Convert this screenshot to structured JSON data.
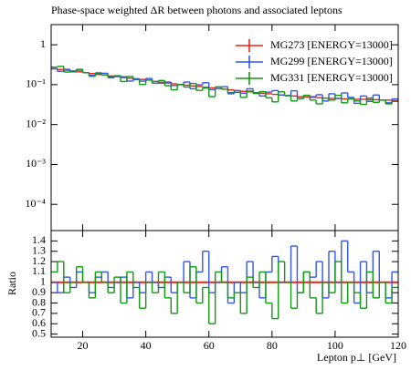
{
  "chart_data": [
    {
      "type": "histogram",
      "title": "Phase-space weighted ΔR between photons and associated leptons",
      "bins": [
        10,
        12,
        14,
        16,
        18,
        20,
        22,
        24,
        26,
        28,
        30,
        32,
        34,
        36,
        38,
        40,
        42,
        44,
        46,
        48,
        50,
        52,
        54,
        56,
        58,
        60,
        62,
        64,
        66,
        68,
        70,
        72,
        74,
        76,
        78,
        80,
        82,
        84,
        86,
        88,
        90,
        92,
        94,
        96,
        98,
        100,
        102,
        104,
        106,
        108,
        110,
        112,
        114,
        116,
        118,
        120
      ],
      "xlim": [
        10,
        120
      ],
      "log_scale": true,
      "ylim": [
        2.2e-05,
        3.2
      ],
      "yticks": [
        1,
        {
          "value": 0.1,
          "label": "10⁻¹"
        },
        {
          "value": 0.01,
          "label": "10⁻²"
        },
        {
          "value": 0.001,
          "label": "10⁻³"
        },
        {
          "value": 0.0001,
          "label": "10⁻⁴"
        }
      ],
      "legend": "top-right",
      "series": [
        {
          "name": "MG273 [ENERGY=13000]",
          "color": "#ee2211",
          "values": [
            0.25,
            0.24,
            0.23,
            0.22,
            0.21,
            0.2,
            0.19,
            0.18,
            0.175,
            0.165,
            0.16,
            0.15,
            0.145,
            0.14,
            0.135,
            0.13,
            0.12,
            0.115,
            0.11,
            0.105,
            0.1,
            0.097,
            0.093,
            0.09,
            0.086,
            0.083,
            0.08,
            0.077,
            0.074,
            0.071,
            0.068,
            0.066,
            0.063,
            0.061,
            0.059,
            0.057,
            0.055,
            0.053,
            0.052,
            0.05,
            0.049,
            0.048,
            0.047,
            0.046,
            0.045,
            0.045,
            0.044,
            0.044,
            0.043,
            0.043,
            0.042,
            0.042,
            0.041,
            0.041,
            0.04
          ]
        },
        {
          "name": "MG299 [ENERGY=13000]",
          "color": "#3355ee",
          "values": [
            0.25,
            0.216,
            0.242,
            0.209,
            0.231,
            0.2,
            0.171,
            0.189,
            0.193,
            0.157,
            0.16,
            0.158,
            0.123,
            0.14,
            0.122,
            0.143,
            0.12,
            0.109,
            0.116,
            0.095,
            0.1,
            0.116,
            0.079,
            0.099,
            0.112,
            0.075,
            0.08,
            0.089,
            0.059,
            0.071,
            0.061,
            0.079,
            0.063,
            0.052,
            0.065,
            0.071,
            0.055,
            0.053,
            0.07,
            0.045,
            0.054,
            0.05,
            0.056,
            0.039,
            0.059,
            0.045,
            0.062,
            0.048,
            0.034,
            0.052,
            0.038,
            0.055,
            0.041,
            0.035,
            0.044
          ]
        },
        {
          "name": "MG331 [ENERGY=13000]",
          "color": "#119911",
          "values": [
            0.275,
            0.288,
            0.207,
            0.22,
            0.242,
            0.2,
            0.162,
            0.198,
            0.175,
            0.149,
            0.168,
            0.12,
            0.16,
            0.133,
            0.101,
            0.13,
            0.108,
            0.127,
            0.094,
            0.074,
            0.1,
            0.087,
            0.107,
            0.072,
            0.082,
            0.05,
            0.088,
            0.077,
            0.063,
            0.064,
            0.048,
            0.069,
            0.06,
            0.067,
            0.047,
            0.037,
            0.066,
            0.053,
            0.039,
            0.045,
            0.054,
            0.041,
            0.033,
            0.046,
            0.041,
            0.054,
            0.035,
            0.044,
            0.039,
            0.032,
            0.046,
            0.036,
            0.041,
            0.033,
            0.038
          ]
        }
      ]
    },
    {
      "type": "histogram",
      "ylabel": "Ratio",
      "xlabel": "Lepton p⊥ [GeV]",
      "xticks": [
        20,
        40,
        60,
        80,
        100,
        120
      ],
      "ylim": [
        0.47,
        1.5
      ],
      "yticks": [
        0.5,
        0.6,
        0.7,
        0.8,
        0.9,
        1,
        1.1,
        1.2,
        1.3,
        1.4
      ],
      "reference_line": 1,
      "reference_color": "#ee2211",
      "series": [
        {
          "color": "#3355ee",
          "values": [
            1.0,
            0.9,
            1.05,
            0.95,
            1.1,
            1.0,
            0.9,
            1.05,
            1.1,
            0.95,
            1.0,
            1.05,
            0.85,
            1.0,
            0.9,
            1.1,
            1.0,
            0.95,
            1.05,
            0.9,
            1.0,
            1.2,
            0.85,
            1.1,
            1.3,
            0.9,
            1.0,
            1.15,
            0.8,
            1.0,
            0.9,
            1.2,
            1.0,
            0.85,
            1.1,
            1.25,
            1.0,
            1.0,
            1.35,
            0.9,
            1.1,
            1.05,
            1.2,
            0.85,
            1.3,
            1.0,
            1.4,
            1.1,
            0.8,
            1.2,
            0.9,
            1.3,
            1.0,
            0.85,
            1.1
          ]
        },
        {
          "color": "#119911",
          "values": [
            1.1,
            1.2,
            0.9,
            1.0,
            1.15,
            1.0,
            0.85,
            1.1,
            1.0,
            0.9,
            1.05,
            0.8,
            1.1,
            0.95,
            0.75,
            1.0,
            0.9,
            1.1,
            0.85,
            0.7,
            1.0,
            0.9,
            1.15,
            0.8,
            0.95,
            0.6,
            1.1,
            1.0,
            0.85,
            0.9,
            0.7,
            1.05,
            0.95,
            1.1,
            0.8,
            0.65,
            1.2,
            1.0,
            0.75,
            0.9,
            1.1,
            0.85,
            0.7,
            1.0,
            0.9,
            1.2,
            0.8,
            1.0,
            0.9,
            0.75,
            1.1,
            0.85,
            1.0,
            0.8,
            0.95
          ]
        }
      ]
    }
  ]
}
